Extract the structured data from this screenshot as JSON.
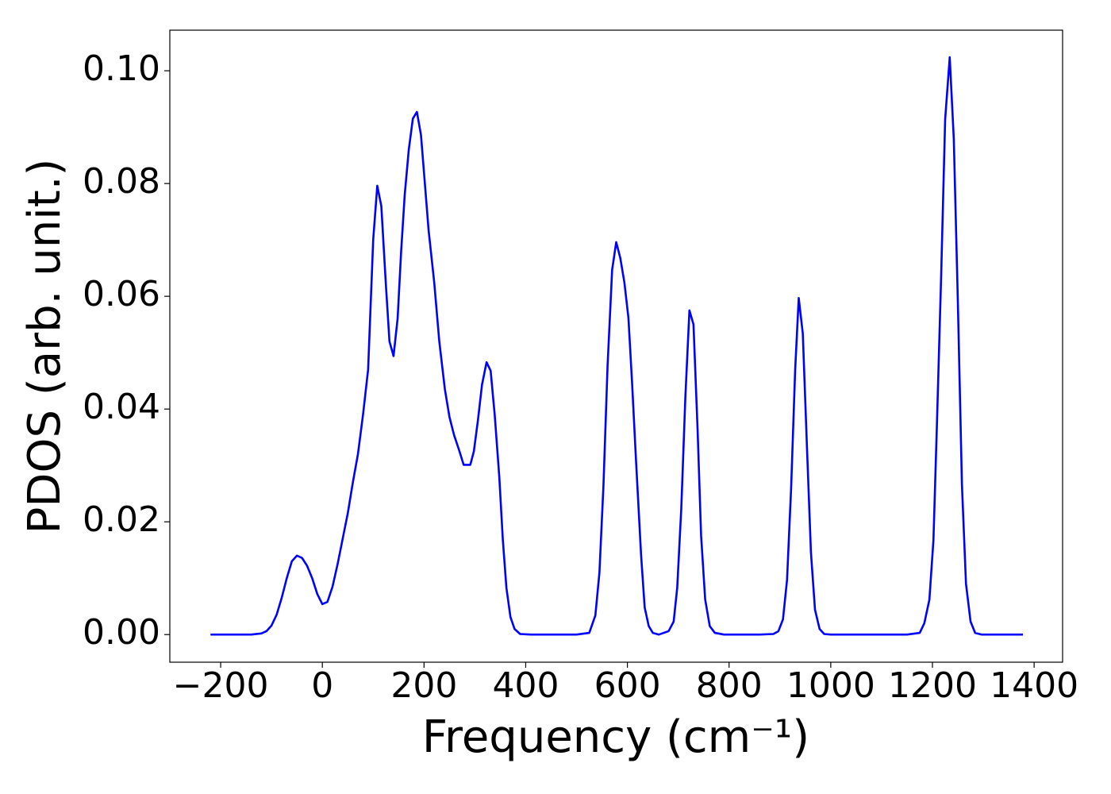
{
  "chart_data": {
    "type": "line",
    "ylabel": "PDOS (arb. unit.)",
    "xlabel": "Frequency (cm⁻¹)",
    "color": "#0000ff",
    "x": [
      -220,
      -180,
      -140,
      -120,
      -110,
      -100,
      -90,
      -80,
      -70,
      -60,
      -50,
      -40,
      -30,
      -20,
      -10,
      0,
      10,
      20,
      30,
      40,
      50,
      60,
      70,
      80,
      90,
      100,
      108,
      116,
      125,
      132,
      140,
      148,
      155,
      162,
      170,
      178,
      186,
      194,
      209,
      220,
      230,
      241,
      250,
      259,
      269,
      278,
      291,
      298,
      306,
      314,
      323,
      331,
      339,
      348,
      355,
      362,
      370,
      378,
      389,
      410,
      450,
      500,
      525,
      537,
      545,
      553,
      561,
      570,
      578,
      586,
      594,
      602,
      609,
      617,
      627,
      634,
      642,
      650,
      662,
      681,
      691,
      698,
      706,
      714,
      722,
      730,
      738,
      745,
      753,
      762,
      772,
      790,
      860,
      887,
      897,
      906,
      914,
      922,
      930,
      937,
      945,
      953,
      961,
      969,
      978,
      987,
      1000,
      1050,
      1100,
      1150,
      1175,
      1184,
      1194,
      1202,
      1209,
      1217,
      1225,
      1234,
      1242,
      1250,
      1258,
      1266,
      1275,
      1284,
      1297,
      1340,
      1378
    ],
    "values": [
      0,
      0,
      0,
      0.0002,
      0.0006,
      0.0016,
      0.0035,
      0.0065,
      0.01,
      0.013,
      0.014,
      0.0136,
      0.0122,
      0.01,
      0.0072,
      0.0054,
      0.0058,
      0.0085,
      0.0125,
      0.017,
      0.0215,
      0.027,
      0.032,
      0.039,
      0.047,
      0.07,
      0.0796,
      0.076,
      0.062,
      0.052,
      0.0494,
      0.056,
      0.068,
      0.078,
      0.086,
      0.0915,
      0.0927,
      0.0886,
      0.0717,
      0.0625,
      0.052,
      0.0435,
      0.0386,
      0.0354,
      0.0327,
      0.0301,
      0.0301,
      0.0325,
      0.038,
      0.0443,
      0.0483,
      0.0468,
      0.039,
      0.028,
      0.0168,
      0.0083,
      0.0031,
      0.001,
      0.0001,
      0,
      0,
      0,
      0.0003,
      0.0034,
      0.011,
      0.0266,
      0.0477,
      0.0647,
      0.0696,
      0.0668,
      0.0625,
      0.0562,
      0.045,
      0.0308,
      0.014,
      0.0048,
      0.0015,
      0.0003,
      0,
      0.0006,
      0.0023,
      0.0083,
      0.0224,
      0.0421,
      0.0575,
      0.055,
      0.0365,
      0.0175,
      0.0062,
      0.0015,
      0.0003,
      0,
      0,
      0.0001,
      0.0006,
      0.0027,
      0.0097,
      0.0259,
      0.047,
      0.0597,
      0.0534,
      0.0337,
      0.0146,
      0.0044,
      0.001,
      0.0001,
      0,
      0,
      0,
      0,
      0.0003,
      0.002,
      0.0062,
      0.0168,
      0.0379,
      0.0632,
      0.0914,
      0.1024,
      0.0879,
      0.059,
      0.0266,
      0.009,
      0.0023,
      0.0003,
      0,
      0,
      0
    ],
    "xlim": [
      -300,
      1456
    ],
    "ylim": [
      -0.0049,
      0.1072
    ],
    "xticks": [
      {
        "value": -200,
        "label": "−200"
      },
      0,
      200,
      400,
      600,
      800,
      1000,
      1200,
      1400
    ],
    "yticks": [
      {
        "value": 0,
        "label": "0.00"
      },
      {
        "value": 0.02,
        "label": "0.02"
      },
      {
        "value": 0.04,
        "label": "0.04"
      },
      {
        "value": 0.06,
        "label": "0.06"
      },
      {
        "value": 0.08,
        "label": "0.08"
      },
      {
        "value": 0.1,
        "label": "0.10"
      }
    ],
    "grid": false
  }
}
